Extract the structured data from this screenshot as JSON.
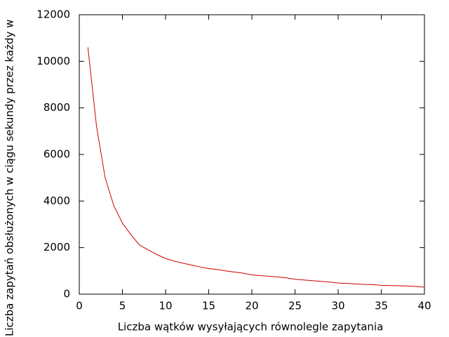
{
  "chart_data": {
    "type": "line",
    "xlabel": "Liczba wątków wysyłających równolegle zapytania",
    "ylabel": "Liczba zapytań obsłużonych w ciągu sekundy przez każdy w",
    "x": [
      1,
      2,
      3,
      4,
      5,
      6,
      7,
      8,
      9,
      10,
      11,
      12,
      13,
      14,
      15,
      16,
      17,
      18,
      19,
      20,
      21,
      22,
      23,
      24,
      25,
      26,
      27,
      28,
      29,
      30,
      31,
      32,
      33,
      34,
      35,
      36,
      37,
      38,
      39,
      40
    ],
    "series": [
      {
        "color": "#cc0000",
        "values": [
          10600,
          7200,
          5000,
          3800,
          3050,
          2550,
          2100,
          1900,
          1700,
          1530,
          1420,
          1330,
          1250,
          1170,
          1100,
          1060,
          1000,
          950,
          900,
          830,
          800,
          770,
          740,
          700,
          640,
          610,
          580,
          550,
          520,
          480,
          460,
          440,
          420,
          410,
          380,
          370,
          360,
          350,
          330,
          300
        ]
      }
    ],
    "xlim": [
      0,
      40
    ],
    "xticks": [
      0,
      5,
      10,
      15,
      20,
      25,
      30,
      35,
      40
    ],
    "ylim": [
      0,
      12000
    ],
    "yticks": [
      0,
      2000,
      4000,
      6000,
      8000,
      10000,
      12000
    ],
    "grid": false
  }
}
